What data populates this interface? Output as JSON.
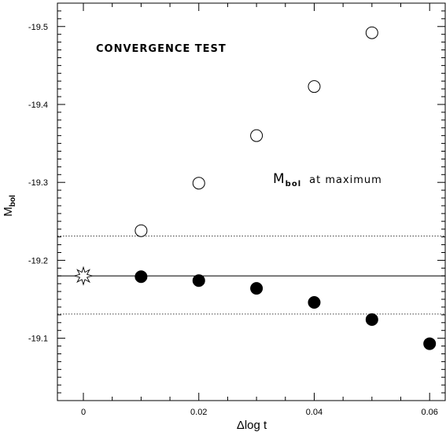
{
  "chart_data": {
    "type": "scatter",
    "title": "",
    "xlabel": "Δlog t",
    "ylabel": {
      "base": "M",
      "subscript": "bol"
    },
    "xlim": [
      -0.0045,
      0.0627
    ],
    "ylim": [
      -19.02,
      -19.53
    ],
    "y_inverted": true,
    "x_ticks": [
      0,
      0.02,
      0.04,
      0.06
    ],
    "x_tick_labels": [
      "0",
      "0.02",
      "0.04",
      "0.06"
    ],
    "y_ticks": [
      -19.1,
      -19.2,
      -19.3,
      -19.4,
      -19.5
    ],
    "y_tick_labels": [
      "-19.1",
      "-19.2",
      "-19.3",
      "-19.4",
      "-19.5"
    ],
    "grid": false,
    "series": [
      {
        "marker": "open-circle",
        "x": [
          0.01,
          0.02,
          0.03,
          0.04,
          0.05
        ],
        "y": [
          -19.238,
          -19.299,
          -19.36,
          -19.423,
          -19.492
        ]
      },
      {
        "marker": "filled-circle",
        "x": [
          0.01,
          0.02,
          0.03,
          0.04,
          0.05,
          0.06
        ],
        "y": [
          -19.179,
          -19.174,
          -19.164,
          -19.146,
          -19.124,
          -19.093
        ]
      },
      {
        "marker": "star",
        "x": [
          0
        ],
        "y": [
          -19.18
        ]
      }
    ],
    "reference_lines": [
      {
        "style": "solid",
        "y": -19.18
      },
      {
        "style": "dotted",
        "y": -19.231
      },
      {
        "style": "dotted",
        "y": -19.131
      }
    ],
    "annotations": {
      "test_label": "CONVERGENCE TEST",
      "mbol_label": {
        "base": "M",
        "subscript": "bol",
        "suffix": "at maximum"
      }
    }
  }
}
